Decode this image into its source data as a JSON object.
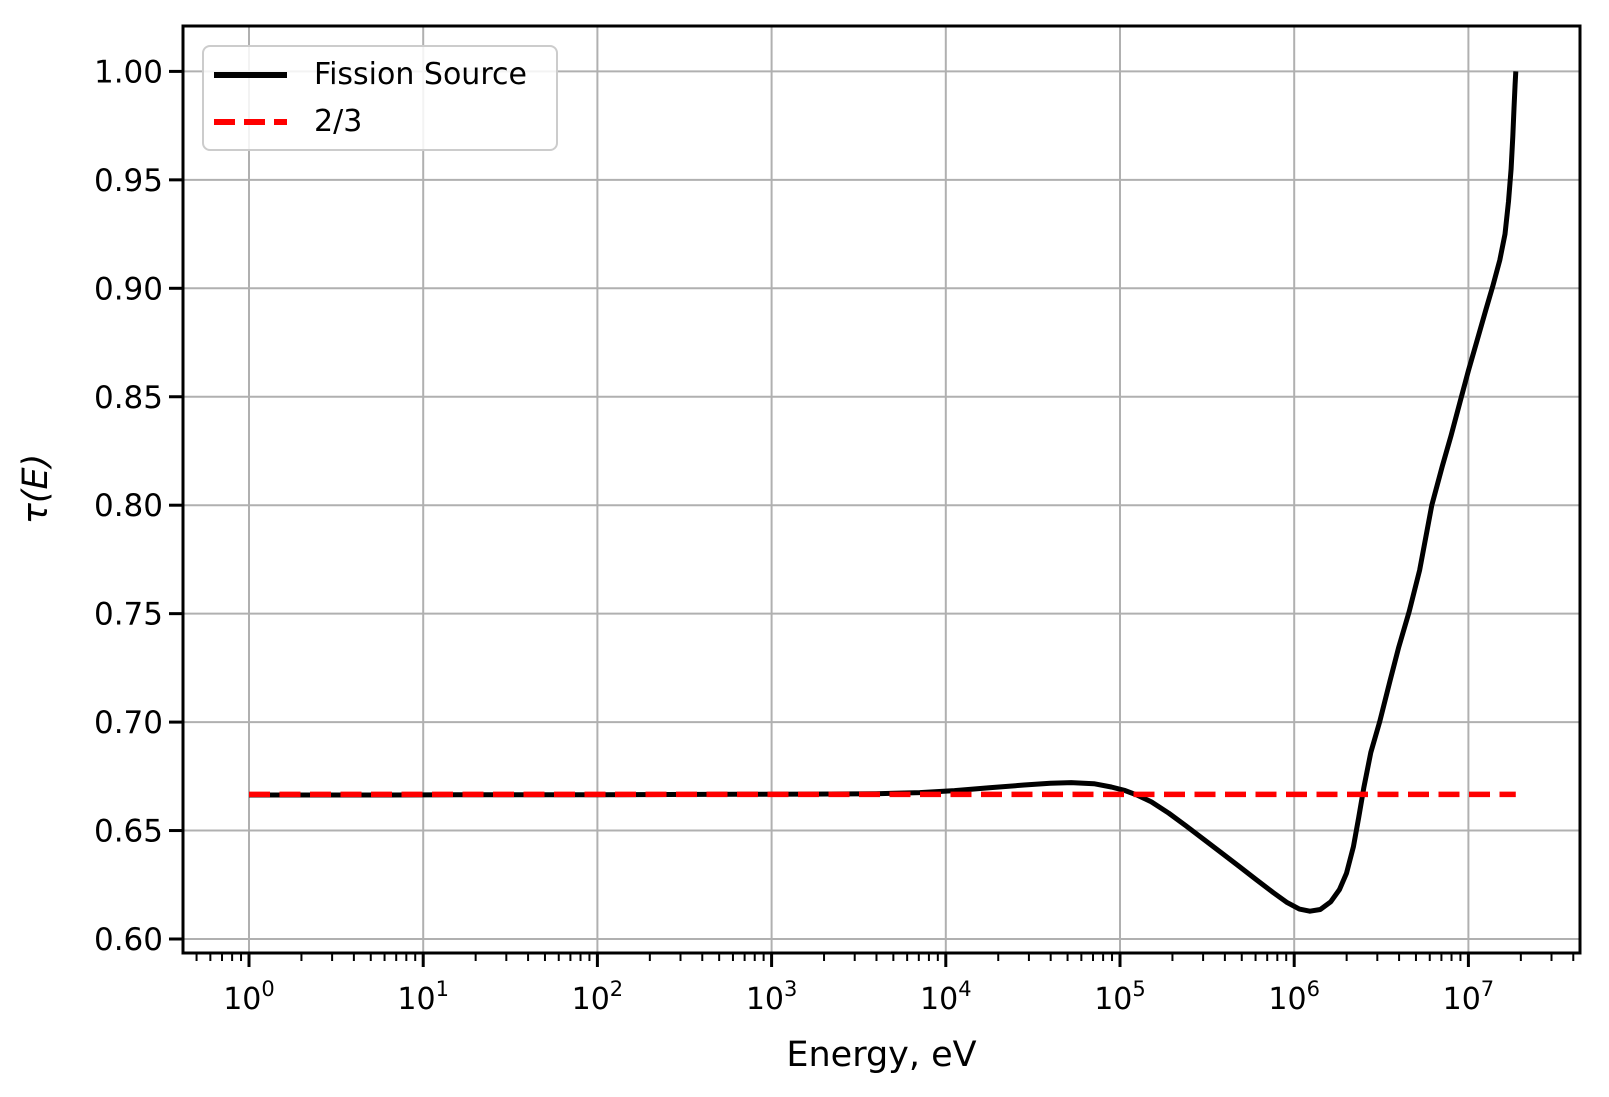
{
  "chart_data": {
    "type": "line",
    "title": "",
    "xlabel": "Energy, eV",
    "ylabel": "τ(E)",
    "x_scale": "log10",
    "x_range_log10": [
      -0.385,
      7.644
    ],
    "y_range": [
      0.594,
      1.021
    ],
    "x_tick_base": "10",
    "x_major_tick_exponents": [
      0,
      1,
      2,
      3,
      4,
      5,
      6,
      7
    ],
    "x_minor_ticks": {
      "decades": [
        -1,
        7
      ],
      "mantissas": [
        2,
        3,
        4,
        5,
        6,
        7,
        8,
        9
      ]
    },
    "y_ticks": [
      0.6,
      0.65,
      0.7,
      0.75,
      0.8,
      0.85,
      0.9,
      0.95,
      1.0
    ],
    "grid": {
      "which": "major",
      "axes": "both",
      "color": "#b0b0b0"
    },
    "legend": {
      "location": "upper left"
    },
    "colors": {
      "background": "#ffffff",
      "spine": "#000000",
      "grid": "#b0b0b0"
    },
    "series": [
      {
        "name": "Fission Source",
        "color": "#000000",
        "style": "solid",
        "points_log10x_y": [
          [
            0.0,
            0.6664
          ],
          [
            0.4,
            0.6664
          ],
          [
            0.8,
            0.6664
          ],
          [
            1.2,
            0.6665
          ],
          [
            1.6,
            0.6665
          ],
          [
            2.0,
            0.6665
          ],
          [
            2.4,
            0.6666
          ],
          [
            2.8,
            0.6667
          ],
          [
            3.2,
            0.6668
          ],
          [
            3.6,
            0.667
          ],
          [
            3.85,
            0.6675
          ],
          [
            4.05,
            0.6684
          ],
          [
            4.25,
            0.6697
          ],
          [
            4.45,
            0.671
          ],
          [
            4.6,
            0.6718
          ],
          [
            4.72,
            0.6721
          ],
          [
            4.85,
            0.6716
          ],
          [
            4.95,
            0.6701
          ],
          [
            5.03,
            0.6684
          ],
          [
            5.1,
            0.6663
          ],
          [
            5.18,
            0.6632
          ],
          [
            5.28,
            0.658
          ],
          [
            5.38,
            0.6521
          ],
          [
            5.48,
            0.646
          ],
          [
            5.58,
            0.6399
          ],
          [
            5.68,
            0.6337
          ],
          [
            5.78,
            0.6275
          ],
          [
            5.88,
            0.6214
          ],
          [
            5.96,
            0.6168
          ],
          [
            6.03,
            0.6138
          ],
          [
            6.09,
            0.6128
          ],
          [
            6.15,
            0.6136
          ],
          [
            6.21,
            0.6172
          ],
          [
            6.26,
            0.6228
          ],
          [
            6.3,
            0.6303
          ],
          [
            6.34,
            0.6425
          ],
          [
            6.37,
            0.656
          ],
          [
            6.4,
            0.67
          ],
          [
            6.44,
            0.686
          ],
          [
            6.49,
            0.7
          ],
          [
            6.55,
            0.719
          ],
          [
            6.6,
            0.7345
          ],
          [
            6.66,
            0.751
          ],
          [
            6.72,
            0.77
          ],
          [
            6.79,
            0.8
          ],
          [
            6.85,
            0.818
          ],
          [
            6.9,
            0.832
          ],
          [
            6.96,
            0.85
          ],
          [
            7.0,
            0.862
          ],
          [
            7.05,
            0.876
          ],
          [
            7.1,
            0.89
          ],
          [
            7.14,
            0.901
          ],
          [
            7.18,
            0.913
          ],
          [
            7.21,
            0.925
          ],
          [
            7.23,
            0.94
          ],
          [
            7.245,
            0.955
          ],
          [
            7.255,
            0.97
          ],
          [
            7.262,
            0.983
          ],
          [
            7.268,
            0.994
          ],
          [
            7.272,
            1.0
          ]
        ]
      },
      {
        "name": "2/3",
        "color": "#ff0000",
        "style": "dashed",
        "value": 0.6667,
        "points_log10x_y": [
          [
            0.0,
            0.6667
          ],
          [
            7.272,
            0.6667
          ]
        ]
      }
    ]
  }
}
